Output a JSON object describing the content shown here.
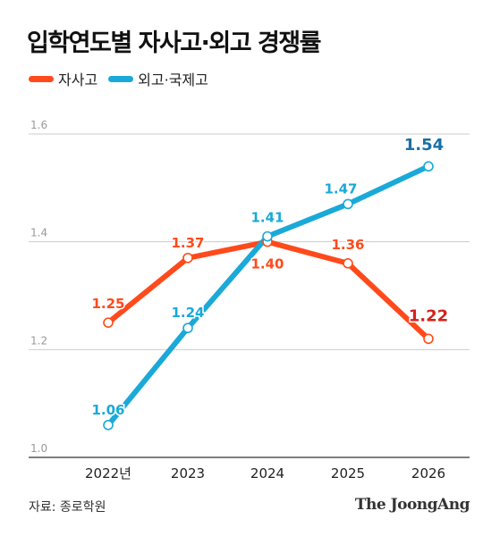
{
  "title": "입학연도별 자사고·외고 경쟁률",
  "source": "자료: 종로학원",
  "brand": "The JoongAng",
  "chart_data": {
    "type": "line",
    "categories": [
      "2022년",
      "2023",
      "2024",
      "2025",
      "2026"
    ],
    "series": [
      {
        "name": "자사고",
        "color": "#ff4a1c",
        "values": [
          1.25,
          1.37,
          1.4,
          1.36,
          1.22
        ],
        "labels": [
          "1.25",
          "1.37",
          "1.40",
          "1.36",
          "1.22"
        ]
      },
      {
        "name": "외고·국제고",
        "color": "#1aa9d8",
        "values": [
          1.06,
          1.24,
          1.41,
          1.47,
          1.54
        ],
        "labels": [
          "1.06",
          "1.24",
          "1.41",
          "1.47",
          "1.54"
        ]
      }
    ],
    "yticks": [
      "1.0",
      "1.2",
      "1.4",
      "1.6"
    ],
    "ylim": [
      1.0,
      1.6
    ],
    "grid": true,
    "legend_position": "top-left"
  }
}
